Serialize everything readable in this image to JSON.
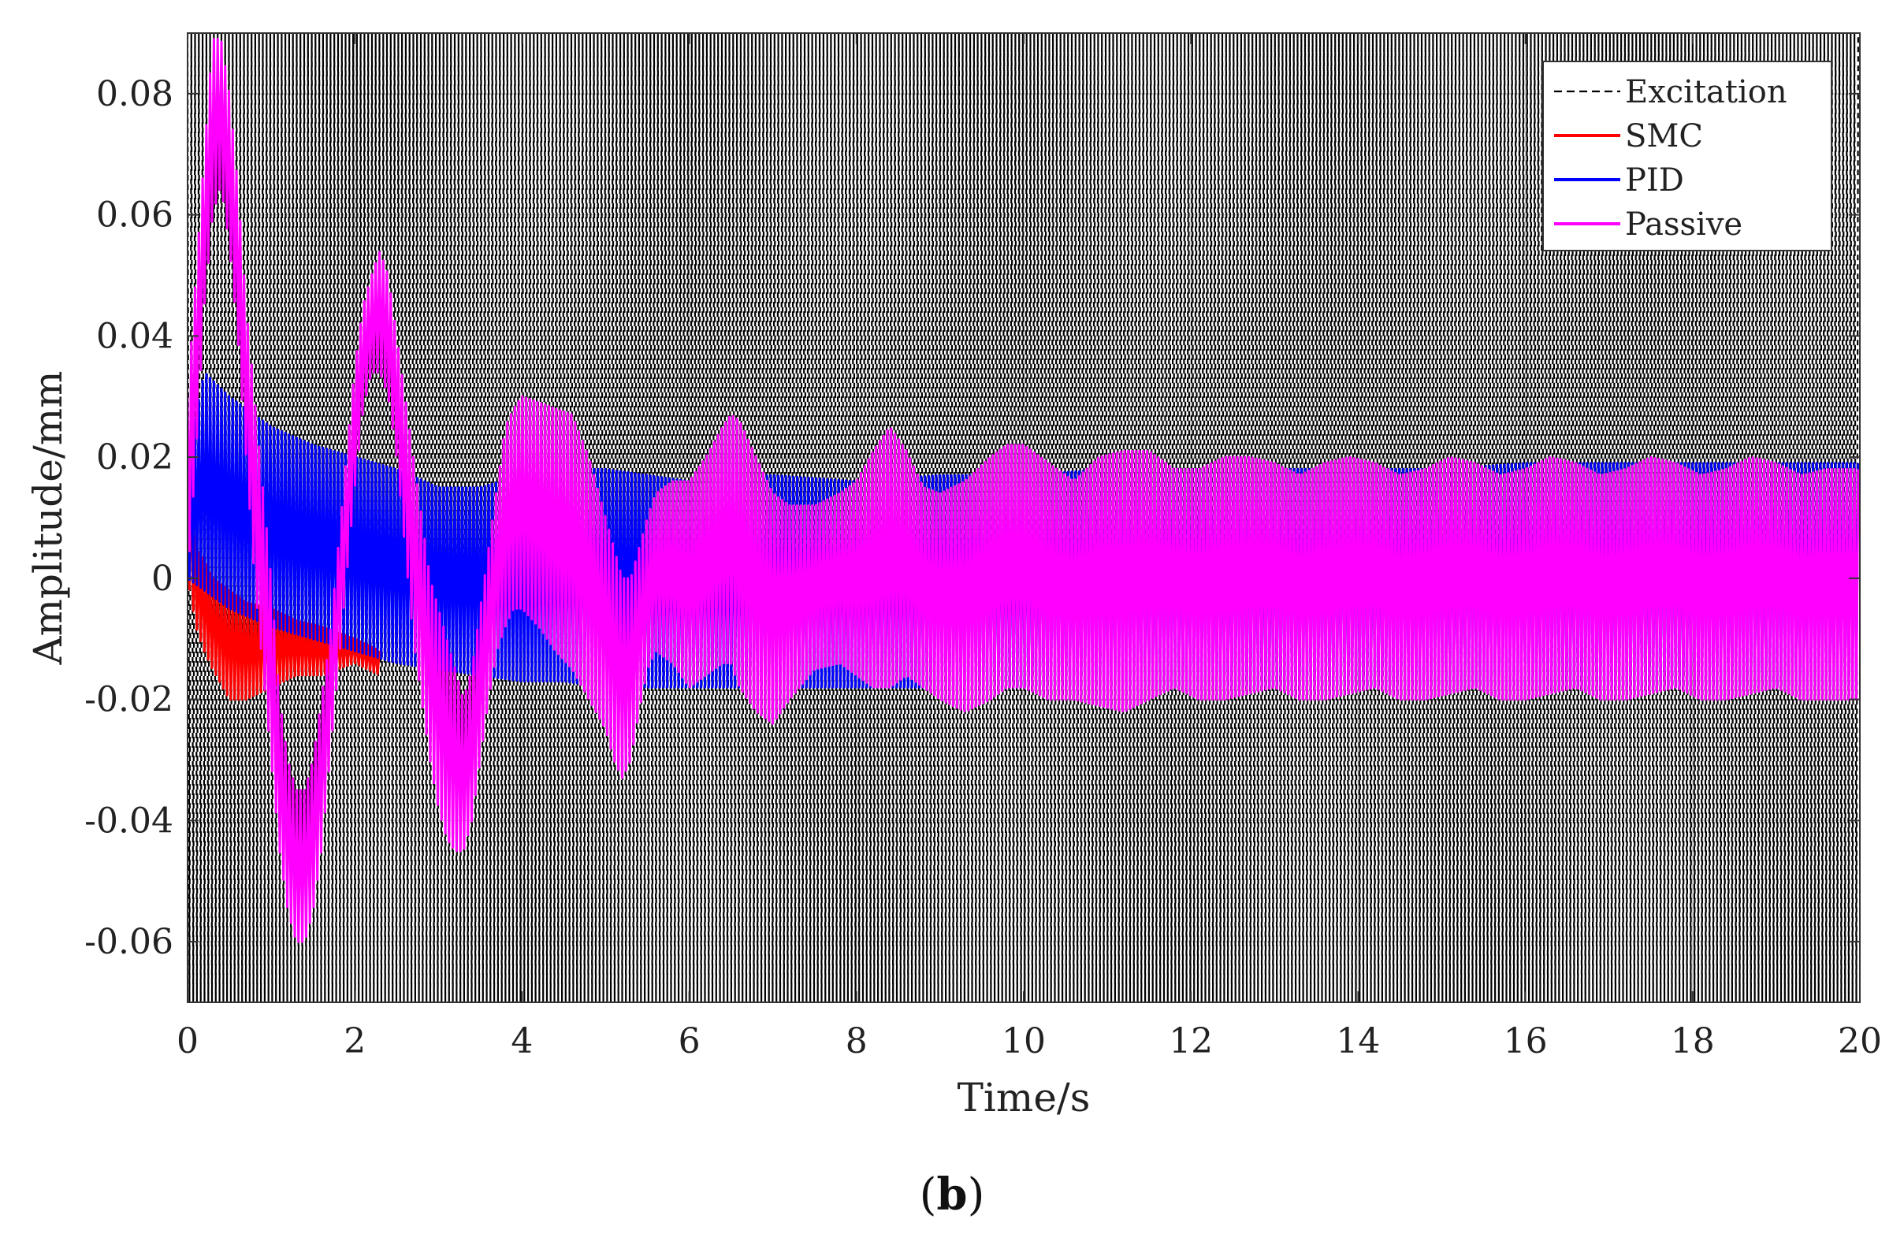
{
  "chart_data": {
    "type": "line",
    "xlabel": "Time/s",
    "ylabel": "Amplitude/mm",
    "xlim": [
      0,
      20
    ],
    "ylim": [
      -0.07,
      0.09
    ],
    "xticks": [
      0,
      2,
      4,
      6,
      8,
      10,
      12,
      14,
      16,
      18,
      20
    ],
    "xtick_labels": [
      "0",
      "2",
      "4",
      "6",
      "8",
      "10",
      "12",
      "14",
      "16",
      "18",
      "20"
    ],
    "yticks": [
      -0.06,
      -0.04,
      -0.02,
      0,
      0.02,
      0.04,
      0.06,
      0.08
    ],
    "ytick_labels": [
      "-0.06",
      "-0.04",
      "-0.02",
      "0",
      "0.02",
      "0.04",
      "0.06",
      "0.08"
    ],
    "grid": true,
    "legend_position": "top-right",
    "caption_open": "(",
    "caption_letter": "b",
    "caption_close": ")",
    "series": [
      {
        "name": "Excitation",
        "color": "#000000",
        "style": "dashed",
        "description": "dense oscillation spanning the full axis range",
        "x": [
          0,
          20
        ],
        "envelope_min": [
          -0.07,
          -0.07
        ],
        "envelope_max": [
          0.09,
          0.09
        ],
        "oscillation_period_s": 0.045
      },
      {
        "name": "SMC",
        "color": "#ff0000",
        "style": "solid",
        "x": [
          0.0,
          0.1,
          0.2,
          0.3,
          0.5,
          0.7,
          1.0,
          1.3,
          1.6,
          2.0,
          2.3
        ],
        "envelope_max": [
          0.025,
          0.005,
          0.003,
          0.0,
          -0.002,
          -0.004,
          -0.005,
          -0.007,
          -0.008,
          -0.01,
          -0.012
        ],
        "envelope_min": [
          0.0,
          -0.008,
          -0.012,
          -0.015,
          -0.02,
          -0.02,
          -0.018,
          -0.016,
          -0.016,
          -0.014,
          -0.016
        ],
        "oscillation_period_s": 0.045
      },
      {
        "name": "PID",
        "color": "#0000ff",
        "style": "solid",
        "x": [
          0.0,
          0.2,
          0.5,
          1.0,
          1.5,
          2.0,
          2.5,
          3.0,
          3.5,
          4.0,
          4.5,
          5.0,
          5.5,
          6.0,
          7.0,
          8.0,
          9.0,
          10.0,
          11.0,
          12.0,
          13.0,
          14.0,
          15.0,
          16.0,
          17.0,
          18.0,
          19.0,
          20.0
        ],
        "envelope_max": [
          0.02,
          0.034,
          0.03,
          0.025,
          0.022,
          0.02,
          0.018,
          0.015,
          0.015,
          0.017,
          0.018,
          0.018,
          0.017,
          0.016,
          0.017,
          0.016,
          0.017,
          0.017,
          0.018,
          0.018,
          0.018,
          0.018,
          0.018,
          0.019,
          0.019,
          0.019,
          0.019,
          0.019
        ],
        "envelope_min": [
          0.0,
          -0.002,
          -0.005,
          -0.008,
          -0.01,
          -0.012,
          -0.014,
          -0.015,
          -0.016,
          -0.017,
          -0.017,
          -0.018,
          -0.018,
          -0.018,
          -0.018,
          -0.018,
          -0.018,
          -0.018,
          -0.018,
          -0.018,
          -0.018,
          -0.018,
          -0.018,
          -0.018,
          -0.018,
          -0.018,
          -0.018,
          -0.018
        ],
        "oscillation_period_s": 0.045
      },
      {
        "name": "Passive",
        "color": "#ff00ff",
        "style": "solid",
        "x": [
          0.0,
          0.1,
          0.2,
          0.3,
          0.4,
          0.5,
          0.6,
          0.7,
          0.8,
          0.9,
          1.0,
          1.1,
          1.2,
          1.3,
          1.4,
          1.5,
          1.6,
          1.7,
          1.8,
          1.9,
          2.0,
          2.1,
          2.2,
          2.3,
          2.4,
          2.5,
          2.6,
          2.7,
          2.8,
          2.9,
          3.0,
          3.1,
          3.2,
          3.3,
          3.4,
          3.5,
          3.6,
          3.7,
          3.8,
          3.9,
          4.0,
          4.2,
          4.4,
          4.6,
          4.8,
          5.0,
          5.1,
          5.2,
          5.3,
          5.4,
          5.5,
          5.6,
          5.8,
          6.0,
          6.2,
          6.4,
          6.5,
          6.6,
          6.8,
          7.0,
          7.2,
          7.5,
          7.8,
          8.0,
          8.2,
          8.4,
          8.6,
          8.8,
          9.0,
          9.3,
          9.6,
          9.8,
          10.0,
          10.3,
          10.6,
          10.9,
          11.2,
          11.5,
          11.8,
          12.1,
          12.4,
          12.7,
          13.0,
          13.3,
          13.6,
          13.9,
          14.2,
          14.5,
          14.8,
          15.1,
          15.4,
          15.7,
          16.0,
          16.3,
          16.6,
          16.9,
          17.2,
          17.5,
          17.8,
          18.1,
          18.4,
          18.7,
          19.0,
          19.3,
          19.6,
          20.0
        ],
        "envelope_max": [
          0.03,
          0.05,
          0.07,
          0.089,
          0.089,
          0.08,
          0.065,
          0.045,
          0.03,
          0.015,
          0.0,
          -0.02,
          -0.03,
          -0.035,
          -0.035,
          -0.03,
          -0.02,
          -0.01,
          0.005,
          0.02,
          0.035,
          0.045,
          0.05,
          0.054,
          0.05,
          0.04,
          0.03,
          0.02,
          0.01,
          0.0,
          -0.005,
          -0.01,
          -0.015,
          -0.02,
          -0.015,
          -0.005,
          0.005,
          0.015,
          0.025,
          0.028,
          0.03,
          0.029,
          0.028,
          0.027,
          0.02,
          0.01,
          0.005,
          0.0,
          0.0,
          0.005,
          0.01,
          0.014,
          0.016,
          0.016,
          0.02,
          0.025,
          0.027,
          0.026,
          0.02,
          0.014,
          0.012,
          0.012,
          0.014,
          0.016,
          0.021,
          0.025,
          0.021,
          0.015,
          0.014,
          0.016,
          0.02,
          0.022,
          0.022,
          0.019,
          0.016,
          0.02,
          0.021,
          0.021,
          0.018,
          0.018,
          0.02,
          0.02,
          0.019,
          0.017,
          0.019,
          0.02,
          0.019,
          0.017,
          0.018,
          0.02,
          0.019,
          0.017,
          0.018,
          0.02,
          0.019,
          0.017,
          0.018,
          0.02,
          0.019,
          0.017,
          0.018,
          0.02,
          0.019,
          0.017,
          0.018,
          0.018
        ],
        "envelope_min": [
          0.0,
          0.02,
          0.045,
          0.06,
          0.065,
          0.055,
          0.04,
          0.02,
          0.0,
          -0.015,
          -0.03,
          -0.045,
          -0.055,
          -0.06,
          -0.06,
          -0.055,
          -0.045,
          -0.03,
          -0.015,
          0.0,
          0.015,
          0.028,
          0.034,
          0.034,
          0.03,
          0.02,
          0.005,
          -0.01,
          -0.02,
          -0.03,
          -0.038,
          -0.043,
          -0.045,
          -0.045,
          -0.04,
          -0.03,
          -0.02,
          -0.012,
          -0.008,
          -0.005,
          -0.005,
          -0.008,
          -0.012,
          -0.015,
          -0.02,
          -0.025,
          -0.03,
          -0.033,
          -0.03,
          -0.022,
          -0.015,
          -0.012,
          -0.014,
          -0.018,
          -0.016,
          -0.014,
          -0.014,
          -0.018,
          -0.022,
          -0.024,
          -0.02,
          -0.015,
          -0.014,
          -0.016,
          -0.018,
          -0.018,
          -0.016,
          -0.018,
          -0.02,
          -0.022,
          -0.02,
          -0.018,
          -0.018,
          -0.02,
          -0.02,
          -0.021,
          -0.022,
          -0.02,
          -0.018,
          -0.02,
          -0.02,
          -0.019,
          -0.018,
          -0.02,
          -0.02,
          -0.019,
          -0.018,
          -0.02,
          -0.02,
          -0.019,
          -0.018,
          -0.02,
          -0.02,
          -0.019,
          -0.018,
          -0.02,
          -0.02,
          -0.019,
          -0.018,
          -0.02,
          -0.02,
          -0.019,
          -0.018,
          -0.02,
          -0.02,
          -0.02
        ],
        "oscillation_period_s": 0.045
      }
    ]
  }
}
